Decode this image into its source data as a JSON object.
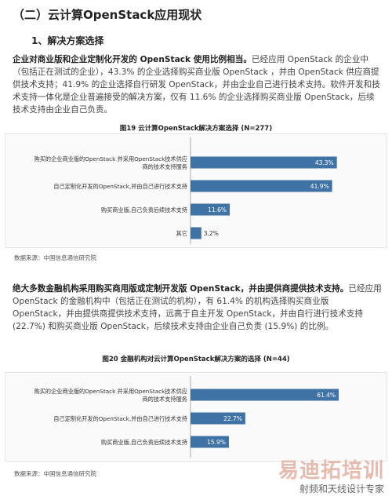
{
  "section_title": "（二）云计算OpenStack应用现状",
  "subsection_title": "1、解决方案选择",
  "para1": {
    "bold": "企业对商业版和企业定制化开发的 OpenStack 使用比例相当。",
    "text": "已经应用 OpenStack 的企业中（包括正在测试的企业），43.3% 的企业选择购买商业版 OpenStack ，并由 OpenStack 供应商提供技术支持；41.9% 的企业选择自行研发 OpenStack，并由企业自己进行技术支持。软件开发和技术支持一体化是企业普遍接受的解决方案，仅有 11.6% 的企业选择购买商业版 OpenStack，后续技术支持由企业自己负责。"
  },
  "para2": {
    "bold": "绝大多数金融机构采用购买商用版或定制开发版 OpenStack，并由提供商提供技术支持。",
    "text": "已经应用 OpenStack 的金融机构中（包括正在测试的机构），有 61.4% 的机构选择购买商业版 OpenStack，并由提供商提供技术支持，远高于自主开发 OpenStack，并由自行进行技术支持 (22.7%) 和购买商业版 OpenStack，后续技术支持由企业自己负责 (15.9%) 的比例。"
  },
  "source_label": "数据来源：中国信息通信研究院",
  "watermark": {
    "big": "易迪拓培训",
    "small": "射频和天线设计专家"
  },
  "colors": {
    "bar": "#3f73a5",
    "value_text": "#ffffff"
  },
  "chart_data": [
    {
      "type": "bar",
      "orientation": "horizontal",
      "title": "图19 云计算OpenStack解决方案选择 (N=277)",
      "categories": [
        "购买的企业商业版的OpenStack 并采用OpenStack技术供应商的技术支持服务",
        "自己定制化开发的OpenStack,并由自己进行技术支持",
        "购买商业版,自己负责后续技术支持",
        "其它"
      ],
      "values": [
        43.3,
        41.9,
        11.6,
        3.2
      ],
      "labels": [
        "43.3%",
        "41.9%",
        "11.6%",
        "3.2%"
      ],
      "xlim": [
        0,
        45
      ]
    },
    {
      "type": "bar",
      "orientation": "horizontal",
      "title": "图20 金融机构对云计算OpenStack解决方案的选择 (N=44)",
      "categories": [
        "购买的企业商业版的OpenStack 并采用OpenStack技术供应商的技术支持服务",
        "自己定制化开发的OpenStack,并由自己进行技术支持",
        "购买商业版,自己负责后续技术支持"
      ],
      "values": [
        61.4,
        22.7,
        15.9
      ],
      "labels": [
        "61.4%",
        "22.7%",
        "15.9%"
      ],
      "xlim": [
        0,
        63
      ]
    }
  ]
}
